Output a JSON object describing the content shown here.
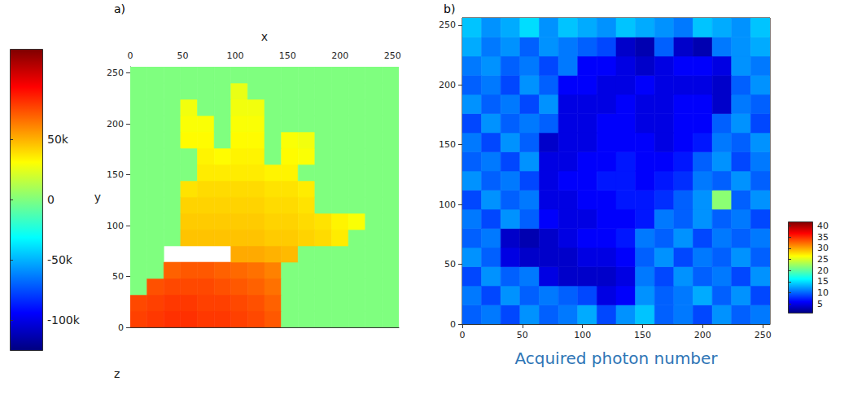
{
  "chart_data": [
    {
      "type": "heatmap",
      "panel": "a)",
      "x_label": "x",
      "y_label": "y",
      "z_label": "z",
      "xlim": [
        0,
        256
      ],
      "ylim": [
        0,
        256
      ],
      "xticks": [
        0,
        50,
        100,
        150,
        200,
        250
      ],
      "yticks": [
        0,
        50,
        100,
        150,
        200,
        250
      ],
      "grid": false,
      "x": [
        8,
        24,
        40,
        56,
        72,
        88,
        104,
        120,
        136,
        152,
        168,
        184,
        200,
        216,
        232,
        248
      ],
      "y": [
        8,
        24,
        40,
        56,
        72,
        88,
        104,
        120,
        136,
        152,
        168,
        184,
        200,
        216,
        232,
        248
      ],
      "cells": [
        [
          78000,
          80000,
          82000,
          82000,
          80000,
          80000,
          78000,
          76000,
          72000,
          0,
          0,
          0,
          0,
          0,
          0,
          0
        ],
        [
          76000,
          78000,
          80000,
          80000,
          78000,
          78000,
          76000,
          74000,
          70000,
          0,
          0,
          0,
          0,
          0,
          0,
          0
        ],
        [
          0,
          74000,
          76000,
          76000,
          76000,
          74000,
          72000,
          70000,
          66000,
          0,
          0,
          0,
          0,
          0,
          0,
          0
        ],
        [
          0,
          0,
          70000,
          72000,
          72000,
          70000,
          68000,
          66000,
          62000,
          0,
          0,
          0,
          0,
          0,
          0,
          0
        ],
        [
          0,
          0,
          null,
          null,
          null,
          null,
          52000,
          52000,
          50000,
          48000,
          0,
          0,
          0,
          0,
          0,
          0
        ],
        [
          0,
          0,
          0,
          46000,
          46000,
          46000,
          46000,
          46000,
          44000,
          44000,
          42000,
          40000,
          36000,
          0,
          0,
          0
        ],
        [
          0,
          0,
          0,
          44000,
          44000,
          44000,
          44000,
          44000,
          42000,
          42000,
          40000,
          38000,
          34000,
          30000,
          0,
          0
        ],
        [
          0,
          0,
          0,
          42000,
          42000,
          42000,
          42000,
          42000,
          40000,
          40000,
          38000,
          0,
          0,
          0,
          0,
          0
        ],
        [
          0,
          0,
          0,
          38000,
          40000,
          40000,
          40000,
          40000,
          38000,
          38000,
          36000,
          0,
          0,
          0,
          0,
          0
        ],
        [
          0,
          0,
          0,
          0,
          36000,
          36000,
          36000,
          36000,
          34000,
          34000,
          0,
          0,
          0,
          0,
          0,
          0
        ],
        [
          0,
          0,
          0,
          0,
          34000,
          32000,
          34000,
          34000,
          0,
          32000,
          30000,
          0,
          0,
          0,
          0,
          0
        ],
        [
          0,
          0,
          0,
          32000,
          32000,
          0,
          32000,
          32000,
          0,
          30000,
          28000,
          0,
          0,
          0,
          0,
          0
        ],
        [
          0,
          0,
          0,
          30000,
          30000,
          0,
          30000,
          30000,
          0,
          0,
          0,
          0,
          0,
          0,
          0,
          0
        ],
        [
          0,
          0,
          0,
          28000,
          0,
          0,
          28000,
          28000,
          0,
          0,
          0,
          0,
          0,
          0,
          0,
          0
        ],
        [
          0,
          0,
          0,
          0,
          0,
          0,
          26000,
          0,
          0,
          0,
          0,
          0,
          0,
          0,
          0,
          0
        ],
        [
          0,
          0,
          0,
          0,
          0,
          0,
          0,
          0,
          0,
          0,
          0,
          0,
          0,
          0,
          0,
          0
        ]
      ],
      "clim": [
        -125000,
        125000
      ],
      "cticks": [
        {
          "value": -100000,
          "label": "-100k"
        },
        {
          "value": -50000,
          "label": "-50k"
        },
        0,
        {
          "value": 50000,
          "label": "50k"
        }
      ]
    },
    {
      "type": "heatmap",
      "panel": "b)",
      "title": "Acquired photon number",
      "xlim": [
        0,
        256
      ],
      "ylim": [
        0,
        256
      ],
      "xticks": [
        0,
        50,
        100,
        150,
        200,
        250
      ],
      "yticks": [
        0,
        50,
        100,
        150,
        200,
        250
      ],
      "grid": false,
      "x": [
        8,
        24,
        40,
        56,
        72,
        88,
        104,
        120,
        136,
        152,
        168,
        184,
        200,
        216,
        232,
        248
      ],
      "y": [
        8,
        24,
        40,
        56,
        72,
        88,
        104,
        120,
        136,
        152,
        168,
        184,
        200,
        216,
        232,
        248
      ],
      "cells": [
        [
          10,
          11,
          9,
          12,
          10,
          11,
          13,
          9,
          12,
          14,
          10,
          11,
          9,
          12,
          10,
          11
        ],
        [
          11,
          9,
          12,
          10,
          11,
          10,
          9,
          5,
          6,
          12,
          10,
          11,
          13,
          10,
          12,
          9
        ],
        [
          9,
          12,
          10,
          11,
          5,
          4,
          4,
          4,
          5,
          11,
          9,
          12,
          10,
          11,
          9,
          12
        ],
        [
          12,
          10,
          5,
          4,
          4,
          4,
          5,
          5,
          6,
          10,
          12,
          9,
          11,
          10,
          12,
          10
        ],
        [
          10,
          11,
          4,
          3,
          4,
          5,
          6,
          6,
          7,
          11,
          10,
          12,
          9,
          11,
          10,
          11
        ],
        [
          11,
          9,
          12,
          10,
          6,
          5,
          5,
          6,
          6,
          7,
          11,
          10,
          12,
          10,
          11,
          9
        ],
        [
          9,
          12,
          10,
          11,
          5,
          5,
          6,
          6,
          7,
          7,
          8,
          10,
          12,
          22,
          10,
          12
        ],
        [
          12,
          10,
          11,
          9,
          5,
          6,
          6,
          7,
          7,
          6,
          7,
          8,
          11,
          10,
          12,
          10
        ],
        [
          10,
          11,
          9,
          12,
          5,
          5,
          6,
          6,
          7,
          6,
          6,
          7,
          10,
          12,
          9,
          11
        ],
        [
          11,
          9,
          12,
          10,
          4,
          5,
          5,
          6,
          6,
          6,
          5,
          6,
          7,
          11,
          10,
          12
        ],
        [
          9,
          12,
          10,
          11,
          10,
          5,
          5,
          6,
          6,
          5,
          5,
          6,
          6,
          10,
          12,
          9
        ],
        [
          12,
          10,
          11,
          9,
          12,
          5,
          5,
          5,
          6,
          5,
          5,
          6,
          6,
          4,
          11,
          10
        ],
        [
          10,
          11,
          9,
          12,
          10,
          6,
          6,
          5,
          5,
          6,
          5,
          5,
          5,
          4,
          10,
          12
        ],
        [
          11,
          12,
          10,
          11,
          9,
          11,
          6,
          6,
          5,
          4,
          5,
          6,
          6,
          5,
          12,
          11
        ],
        [
          13,
          11,
          12,
          10,
          12,
          11,
          10,
          9,
          4,
          3,
          10,
          4,
          3,
          11,
          12,
          13
        ],
        [
          14,
          12,
          13,
          15,
          12,
          14,
          13,
          12,
          14,
          13,
          12,
          11,
          14,
          13,
          12,
          14
        ]
      ],
      "clim": [
        1,
        42
      ],
      "cticks": [
        5,
        10,
        15,
        20,
        25,
        30,
        35,
        40
      ]
    }
  ]
}
